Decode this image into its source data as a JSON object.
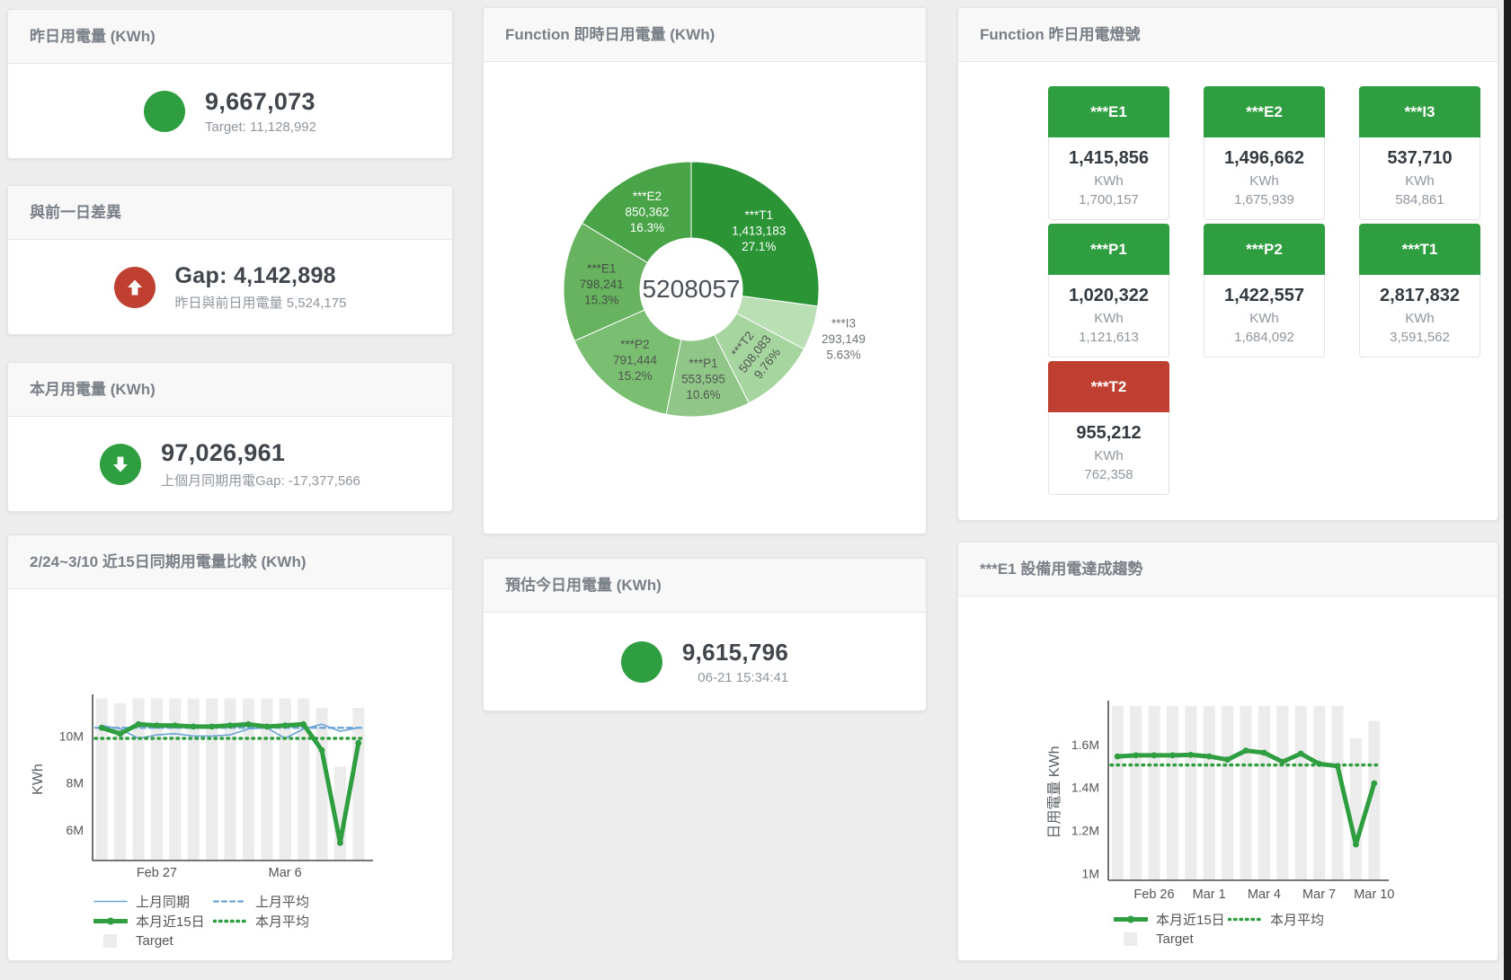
{
  "colors": {
    "green": "#2f9e41",
    "red": "#bf4030",
    "blue": "#6ba3d6",
    "target_bar": "#ececec",
    "axis": "#4c4c4c",
    "tick_text": "#555555"
  },
  "cards": {
    "yesterday": {
      "title": "昨日用電量 (KWh)",
      "value": "9,667,073",
      "subtitle": "Target: 11,128,992"
    },
    "gap_prev_day": {
      "title": "與前一日差異",
      "value": "Gap: 4,142,898",
      "subtitle": "昨日與前日用電量 5,524,175"
    },
    "month": {
      "title": "本月用電量 (KWh)",
      "value": "97,026,961",
      "subtitle": "上個月同期用電Gap: -17,377,566"
    },
    "forecast": {
      "title": "預估今日用電量 (KWh)",
      "value": "9,615,796",
      "subtitle": "06-21 15:34:41"
    },
    "donut": {
      "title": "Function 即時日用電量 (KWh)"
    },
    "lights": {
      "title": "Function 昨日用電燈號"
    },
    "compare": {
      "title": "2/24~3/10 近15日同期用電量比較 (KWh)"
    },
    "trend": {
      "title": "***E1 設備用電達成趨勢"
    }
  },
  "lights_tiles": [
    {
      "id": "E1",
      "label": "***E1",
      "value": "1,415,856",
      "unit": "KWh",
      "target": "1,700,157",
      "status": "green"
    },
    {
      "id": "E2",
      "label": "***E2",
      "value": "1,496,662",
      "unit": "KWh",
      "target": "1,675,939",
      "status": "green"
    },
    {
      "id": "I3",
      "label": "***I3",
      "value": "537,710",
      "unit": "KWh",
      "target": "584,861",
      "status": "green"
    },
    {
      "id": "P1",
      "label": "***P1",
      "value": "1,020,322",
      "unit": "KWh",
      "target": "1,121,613",
      "status": "green"
    },
    {
      "id": "P2",
      "label": "***P2",
      "value": "1,422,557",
      "unit": "KWh",
      "target": "1,684,092",
      "status": "green"
    },
    {
      "id": "T1",
      "label": "***T1",
      "value": "2,817,832",
      "unit": "KWh",
      "target": "3,591,562",
      "status": "green"
    },
    {
      "id": "T2",
      "label": "***T2",
      "value": "955,212",
      "unit": "KWh",
      "target": "762,358",
      "status": "red"
    }
  ],
  "chart_data": [
    {
      "type": "pie",
      "title": "Function 即時日用電量 (KWh)",
      "center_label": "5208057",
      "segments": [
        {
          "label": "***T1",
          "value": "1,413,183",
          "pct": 27.1,
          "pct_label": "27.1%",
          "color": "#2b9434",
          "text_color": "#ffffff"
        },
        {
          "label": "***I3",
          "value": "293,149",
          "pct": 5.63,
          "pct_label": "5.63%",
          "color": "#badfb5",
          "text_color": "#6d756f",
          "label_r": 178
        },
        {
          "label": "***T2",
          "value": "508,083",
          "pct": 9.76,
          "pct_label": "9.76%",
          "color": "#a6d5a0",
          "text_color": "#4f584f",
          "rotate": -52
        },
        {
          "label": "***P1",
          "value": "553,595",
          "pct": 10.6,
          "pct_label": "10.6%",
          "color": "#90c789",
          "text_color": "#4f584f"
        },
        {
          "label": "***P2",
          "value": "791,444",
          "pct": 15.2,
          "pct_label": "15.2%",
          "color": "#7abe72",
          "text_color": "#4f584f"
        },
        {
          "label": "***E1",
          "value": "798,241",
          "pct": 15.3,
          "pct_label": "15.3%",
          "color": "#68b360",
          "text_color": "#445044"
        },
        {
          "label": "***E2",
          "value": "850,362",
          "pct": 16.3,
          "pct_label": "16.3%",
          "color": "#48a446",
          "text_color": "#ffffff"
        }
      ]
    },
    {
      "type": "line",
      "title": "2/24~3/10 近15日同期用電量比較 (KWh)",
      "ylabel": "KWh",
      "ylim": [
        4.7,
        11.62
      ],
      "yticks": [
        {
          "v": 6,
          "label": "6M"
        },
        {
          "v": 8,
          "label": "8M"
        },
        {
          "v": 10,
          "label": "10M"
        }
      ],
      "xticks": [
        {
          "i": 3,
          "label": "Feb 27"
        },
        {
          "i": 10,
          "label": "Mar 6"
        }
      ],
      "n": 15,
      "target_name": "Target",
      "target_bars": [
        11.6,
        11.4,
        11.6,
        11.6,
        11.6,
        11.6,
        11.6,
        11.6,
        11.6,
        11.6,
        11.6,
        11.6,
        11.2,
        8.7,
        11.2
      ],
      "series": [
        {
          "name": "上月同期",
          "style": "solid",
          "color": "#6ba3d6",
          "width": 1.6,
          "values": [
            10.45,
            10.3,
            9.9,
            10.05,
            10.1,
            10.0,
            10.0,
            10.05,
            10.3,
            10.35,
            9.9,
            10.3,
            10.5,
            10.2,
            10.35
          ]
        },
        {
          "name": "上月平均",
          "style": "dashed",
          "color": "#6ba3d6",
          "width": 2.2,
          "const": 10.35
        },
        {
          "name": "本月近15日",
          "style": "solid",
          "color": "#2f9e41",
          "width": 5,
          "markers": true,
          "values": [
            10.35,
            10.1,
            10.5,
            10.45,
            10.45,
            10.4,
            10.4,
            10.45,
            10.5,
            10.4,
            10.45,
            10.5,
            9.4,
            5.45,
            9.7
          ]
        },
        {
          "name": "本月平均",
          "style": "dotted",
          "color": "#2f9e41",
          "width": 3.5,
          "const": 9.9
        }
      ],
      "legend_rows": [
        [
          "上月同期",
          "上月平均"
        ],
        [
          "本月近15日",
          "本月平均"
        ],
        [
          "Target"
        ]
      ]
    },
    {
      "type": "line",
      "title": "***E1 設備用電達成趨勢",
      "ylabel": "日用電量 KWh",
      "ylim": [
        0.968,
        1.788
      ],
      "yticks": [
        {
          "v": 1,
          "label": "1M"
        },
        {
          "v": 1.2,
          "label": "1.2M"
        },
        {
          "v": 1.4,
          "label": "1.4M"
        },
        {
          "v": 1.6,
          "label": "1.6M"
        }
      ],
      "xticks": [
        {
          "i": 2,
          "label": "Feb 26"
        },
        {
          "i": 5,
          "label": "Mar 1"
        },
        {
          "i": 8,
          "label": "Mar 4"
        },
        {
          "i": 11,
          "label": "Mar 7"
        },
        {
          "i": 14,
          "label": "Mar 10"
        }
      ],
      "n": 15,
      "target_name": "Target",
      "target_bars": [
        1.78,
        1.78,
        1.78,
        1.78,
        1.78,
        1.78,
        1.78,
        1.78,
        1.78,
        1.78,
        1.78,
        1.78,
        1.78,
        1.63,
        1.71
      ],
      "series": [
        {
          "name": "本月近15日",
          "style": "solid",
          "color": "#2f9e41",
          "width": 5,
          "markers": true,
          "values": [
            1.545,
            1.55,
            1.55,
            1.55,
            1.552,
            1.545,
            1.53,
            1.572,
            1.562,
            1.52,
            1.558,
            1.51,
            1.5,
            1.135,
            1.42
          ]
        },
        {
          "name": "本月平均",
          "style": "dotted",
          "color": "#2f9e41",
          "width": 3.5,
          "const": 1.505
        }
      ],
      "legend_rows": [
        [
          "本月近15日",
          "本月平均"
        ],
        [
          "Target"
        ]
      ]
    }
  ]
}
